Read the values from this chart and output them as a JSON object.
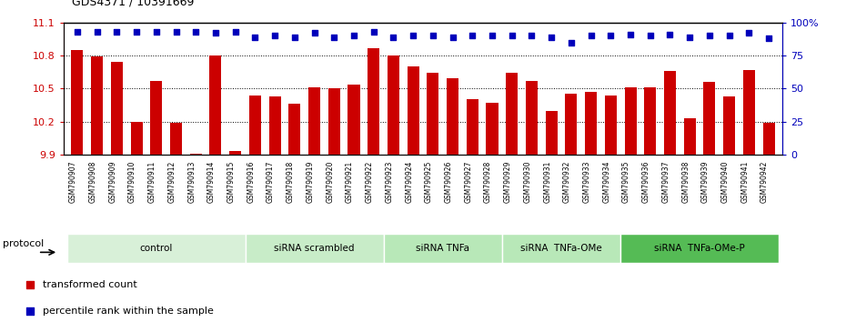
{
  "title": "GDS4371 / 10391669",
  "samples": [
    "GSM790907",
    "GSM790908",
    "GSM790909",
    "GSM790910",
    "GSM790911",
    "GSM790912",
    "GSM790913",
    "GSM790914",
    "GSM790915",
    "GSM790916",
    "GSM790917",
    "GSM790918",
    "GSM790919",
    "GSM790920",
    "GSM790921",
    "GSM790922",
    "GSM790923",
    "GSM790924",
    "GSM790925",
    "GSM790926",
    "GSM790927",
    "GSM790928",
    "GSM790929",
    "GSM790930",
    "GSM790931",
    "GSM790932",
    "GSM790933",
    "GSM790934",
    "GSM790935",
    "GSM790936",
    "GSM790937",
    "GSM790938",
    "GSM790939",
    "GSM790940",
    "GSM790941",
    "GSM790942"
  ],
  "bar_values": [
    10.85,
    10.79,
    10.74,
    10.2,
    10.57,
    10.19,
    9.91,
    10.8,
    9.93,
    10.44,
    10.43,
    10.36,
    10.51,
    10.5,
    10.54,
    10.87,
    10.8,
    10.7,
    10.64,
    10.59,
    10.4,
    10.37,
    10.64,
    10.57,
    10.3,
    10.45,
    10.47,
    10.44,
    10.51,
    10.51,
    10.66,
    10.23,
    10.56,
    10.43,
    10.67,
    10.19
  ],
  "percentile_values": [
    93,
    93,
    93,
    93,
    93,
    93,
    93,
    92,
    93,
    89,
    90,
    89,
    92,
    89,
    90,
    93,
    89,
    90,
    90,
    89,
    90,
    90,
    90,
    90,
    89,
    85,
    90,
    90,
    91,
    90,
    91,
    89,
    90,
    90,
    92,
    88
  ],
  "bar_color": "#cc0000",
  "dot_color": "#0000bb",
  "ylim_left": [
    9.9,
    11.1
  ],
  "ylim_right": [
    0,
    100
  ],
  "yticks_left": [
    9.9,
    10.2,
    10.5,
    10.8,
    11.1
  ],
  "yticks_right": [
    0,
    25,
    50,
    75,
    100
  ],
  "ytick_right_labels": [
    "0",
    "25",
    "50",
    "75",
    "100%"
  ],
  "grid_lines": [
    10.2,
    10.5,
    10.8
  ],
  "groups": [
    {
      "label": "control",
      "start": 0,
      "end": 8,
      "color": "#d8f0d8"
    },
    {
      "label": "siRNA scrambled",
      "start": 9,
      "end": 15,
      "color": "#c8ecc8"
    },
    {
      "label": "siRNA TNFa",
      "start": 16,
      "end": 21,
      "color": "#b8e8b8"
    },
    {
      "label": "siRNA  TNFa-OMe",
      "start": 22,
      "end": 27,
      "color": "#b8e8b8"
    },
    {
      "label": "siRNA  TNFa-OMe-P",
      "start": 28,
      "end": 35,
      "color": "#55bb55"
    }
  ],
  "protocol_label": "protocol",
  "legend_item1": "transformed count",
  "legend_item2": "percentile rank within the sample",
  "xtick_bg_color": "#cccccc",
  "bar_width": 0.6
}
